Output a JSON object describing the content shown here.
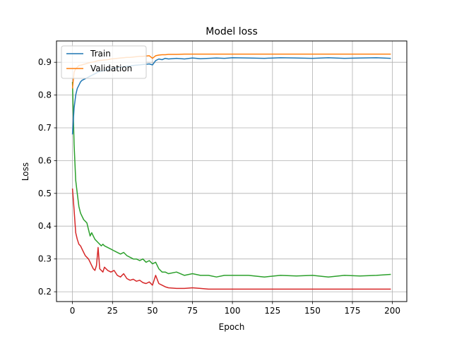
{
  "chart_data": {
    "type": "line",
    "title": "Model loss",
    "xlabel": "Epoch",
    "ylabel": "Loss",
    "xlim": [
      -10,
      209
    ],
    "ylim": [
      0.17,
      0.965
    ],
    "xticks": [
      0,
      25,
      50,
      75,
      100,
      125,
      150,
      175,
      200
    ],
    "yticks": [
      0.2,
      0.3,
      0.4,
      0.5,
      0.6,
      0.7,
      0.8,
      0.9
    ],
    "grid": true,
    "legend": {
      "placement": "upper-left",
      "entries": [
        "Train",
        "Validation"
      ]
    },
    "series": [
      {
        "name": "Train",
        "color": "#1f77b4",
        "x": [
          0,
          1,
          2,
          3,
          4,
          5,
          6,
          8,
          10,
          12,
          14,
          16,
          18,
          20,
          22,
          24,
          26,
          28,
          30,
          32,
          34,
          36,
          38,
          40,
          42,
          44,
          46,
          48,
          50,
          52,
          54,
          56,
          58,
          60,
          65,
          70,
          75,
          80,
          85,
          90,
          95,
          100,
          110,
          120,
          130,
          140,
          150,
          160,
          170,
          180,
          190,
          199
        ],
        "y": [
          0.68,
          0.76,
          0.8,
          0.82,
          0.83,
          0.84,
          0.845,
          0.85,
          0.855,
          0.86,
          0.865,
          0.87,
          0.873,
          0.875,
          0.878,
          0.88,
          0.882,
          0.884,
          0.885,
          0.887,
          0.888,
          0.889,
          0.89,
          0.891,
          0.892,
          0.893,
          0.894,
          0.895,
          0.892,
          0.905,
          0.91,
          0.908,
          0.912,
          0.91,
          0.912,
          0.91,
          0.913,
          0.911,
          0.912,
          0.913,
          0.912,
          0.914,
          0.913,
          0.912,
          0.914,
          0.913,
          0.912,
          0.914,
          0.912,
          0.913,
          0.914,
          0.912
        ]
      },
      {
        "name": "Validation",
        "color": "#ff7f0e",
        "x": [
          0,
          1,
          2,
          3,
          4,
          6,
          8,
          10,
          12,
          14,
          16,
          18,
          20,
          22,
          24,
          26,
          28,
          30,
          32,
          34,
          36,
          38,
          40,
          42,
          44,
          46,
          48,
          50,
          52,
          54,
          56,
          58,
          60,
          65,
          70,
          80,
          90,
          100,
          120,
          140,
          160,
          180,
          199
        ],
        "y": [
          0.82,
          0.87,
          0.88,
          0.885,
          0.89,
          0.892,
          0.895,
          0.898,
          0.9,
          0.902,
          0.905,
          0.906,
          0.907,
          0.908,
          0.91,
          0.911,
          0.912,
          0.913,
          0.914,
          0.915,
          0.915,
          0.916,
          0.917,
          0.918,
          0.918,
          0.919,
          0.92,
          0.912,
          0.92,
          0.922,
          0.923,
          0.923,
          0.924,
          0.924,
          0.925,
          0.925,
          0.925,
          0.925,
          0.925,
          0.925,
          0.925,
          0.925,
          0.925
        ]
      },
      {
        "color": "#2ca02c",
        "x": [
          0,
          1,
          2,
          3,
          4,
          5,
          6,
          7,
          8,
          9,
          10,
          11,
          12,
          13,
          14,
          15,
          16,
          17,
          18,
          19,
          20,
          22,
          24,
          26,
          28,
          30,
          32,
          34,
          36,
          38,
          40,
          42,
          44,
          46,
          48,
          50,
          52,
          54,
          56,
          58,
          60,
          65,
          70,
          75,
          80,
          85,
          90,
          95,
          100,
          110,
          120,
          130,
          140,
          150,
          160,
          170,
          180,
          190,
          199
        ],
        "y": [
          0.84,
          0.65,
          0.54,
          0.5,
          0.46,
          0.44,
          0.43,
          0.42,
          0.415,
          0.41,
          0.39,
          0.37,
          0.38,
          0.37,
          0.36,
          0.355,
          0.35,
          0.345,
          0.34,
          0.345,
          0.34,
          0.335,
          0.33,
          0.325,
          0.32,
          0.315,
          0.32,
          0.31,
          0.305,
          0.3,
          0.3,
          0.295,
          0.3,
          0.29,
          0.295,
          0.285,
          0.29,
          0.27,
          0.26,
          0.26,
          0.255,
          0.26,
          0.25,
          0.255,
          0.25,
          0.25,
          0.245,
          0.25,
          0.25,
          0.25,
          0.245,
          0.25,
          0.248,
          0.25,
          0.245,
          0.25,
          0.248,
          0.25,
          0.253
        ]
      },
      {
        "color": "#d62728",
        "x": [
          0,
          1,
          2,
          3,
          4,
          5,
          6,
          7,
          8,
          9,
          10,
          11,
          12,
          13,
          14,
          15,
          16,
          17,
          18,
          19,
          20,
          22,
          24,
          26,
          28,
          30,
          32,
          34,
          36,
          38,
          40,
          42,
          44,
          46,
          48,
          50,
          52,
          54,
          56,
          58,
          60,
          65,
          70,
          75,
          80,
          85,
          90,
          100,
          120,
          140,
          160,
          180,
          199
        ],
        "y": [
          0.515,
          0.45,
          0.38,
          0.36,
          0.345,
          0.34,
          0.33,
          0.32,
          0.31,
          0.305,
          0.3,
          0.29,
          0.28,
          0.27,
          0.265,
          0.28,
          0.335,
          0.27,
          0.265,
          0.26,
          0.275,
          0.265,
          0.26,
          0.265,
          0.25,
          0.245,
          0.255,
          0.24,
          0.235,
          0.238,
          0.232,
          0.235,
          0.228,
          0.225,
          0.23,
          0.22,
          0.25,
          0.225,
          0.22,
          0.215,
          0.212,
          0.21,
          0.21,
          0.212,
          0.21,
          0.208,
          0.208,
          0.208,
          0.208,
          0.208,
          0.208,
          0.208,
          0.208
        ]
      }
    ]
  }
}
